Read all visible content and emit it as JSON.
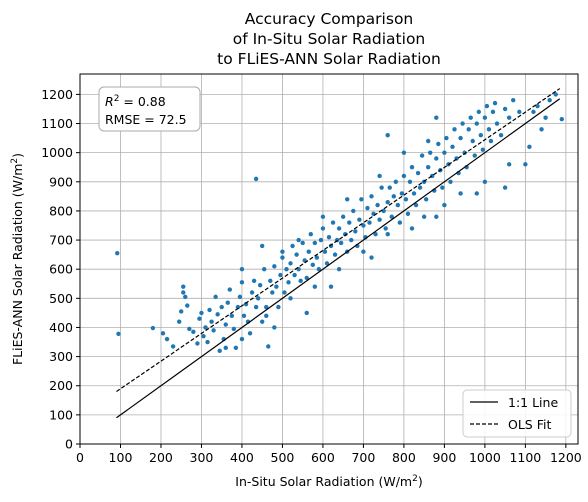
{
  "chart_data": {
    "type": "scatter",
    "title": [
      "Accuracy Comparison",
      "of In-Situ Solar Radiation",
      "to FLiES-ANN Solar Radiation"
    ],
    "xlabel": "In-Situ Solar Radiation (W/m",
    "xlabel_sup": "2",
    "xlabel_end": ")",
    "ylabel": "FLiES-ANN Solar Radiation (W/m",
    "ylabel_sup": "2",
    "ylabel_end": ")",
    "xlim": [
      0,
      1230
    ],
    "ylim": [
      0,
      1270
    ],
    "xticks": [
      0,
      100,
      200,
      300,
      400,
      500,
      600,
      700,
      800,
      900,
      1000,
      1100,
      1200
    ],
    "yticks": [
      0,
      100,
      200,
      300,
      400,
      500,
      600,
      700,
      800,
      900,
      1000,
      1100,
      1200
    ],
    "grid": true,
    "point_color": "#1f77b4",
    "stats": {
      "r2_label": "R",
      "r2_sup": "2",
      "r2_value": " = 0.88",
      "rmse": "RMSE = 72.5"
    },
    "lines": [
      {
        "name": "1:1 Line",
        "style": "solid",
        "points": [
          [
            90,
            90
          ],
          [
            1185,
            1185
          ]
        ]
      },
      {
        "name": "OLS Fit",
        "style": "dashed",
        "points": [
          [
            90,
            180
          ],
          [
            1185,
            1220
          ]
        ]
      }
    ],
    "legend_position": "lower-right",
    "points": [
      [
        92,
        655
      ],
      [
        95,
        378
      ],
      [
        180,
        398
      ],
      [
        205,
        380
      ],
      [
        215,
        360
      ],
      [
        230,
        335
      ],
      [
        245,
        420
      ],
      [
        250,
        455
      ],
      [
        255,
        520
      ],
      [
        255,
        540
      ],
      [
        260,
        505
      ],
      [
        265,
        475
      ],
      [
        270,
        395
      ],
      [
        280,
        385
      ],
      [
        290,
        345
      ],
      [
        295,
        430
      ],
      [
        300,
        450
      ],
      [
        305,
        370
      ],
      [
        310,
        400
      ],
      [
        315,
        350
      ],
      [
        320,
        460
      ],
      [
        325,
        420
      ],
      [
        330,
        390
      ],
      [
        335,
        505
      ],
      [
        340,
        445
      ],
      [
        345,
        320
      ],
      [
        350,
        470
      ],
      [
        355,
        360
      ],
      [
        360,
        410
      ],
      [
        365,
        485
      ],
      [
        370,
        530
      ],
      [
        375,
        440
      ],
      [
        380,
        395
      ],
      [
        385,
        330
      ],
      [
        390,
        470
      ],
      [
        395,
        505
      ],
      [
        400,
        555
      ],
      [
        405,
        440
      ],
      [
        410,
        480
      ],
      [
        415,
        420
      ],
      [
        420,
        380
      ],
      [
        425,
        520
      ],
      [
        430,
        560
      ],
      [
        435,
        910
      ],
      [
        435,
        470
      ],
      [
        440,
        500
      ],
      [
        445,
        545
      ],
      [
        450,
        420
      ],
      [
        455,
        600
      ],
      [
        460,
        470
      ],
      [
        465,
        335
      ],
      [
        470,
        560
      ],
      [
        475,
        520
      ],
      [
        480,
        610
      ],
      [
        485,
        540
      ],
      [
        490,
        470
      ],
      [
        495,
        580
      ],
      [
        500,
        640
      ],
      [
        505,
        520
      ],
      [
        510,
        600
      ],
      [
        515,
        555
      ],
      [
        520,
        620
      ],
      [
        525,
        680
      ],
      [
        530,
        580
      ],
      [
        535,
        650
      ],
      [
        540,
        600
      ],
      [
        545,
        560
      ],
      [
        550,
        690
      ],
      [
        555,
        630
      ],
      [
        560,
        570
      ],
      [
        565,
        660
      ],
      [
        570,
        720
      ],
      [
        575,
        615
      ],
      [
        580,
        690
      ],
      [
        585,
        640
      ],
      [
        590,
        600
      ],
      [
        595,
        700
      ],
      [
        600,
        740
      ],
      [
        605,
        660
      ],
      [
        610,
        620
      ],
      [
        615,
        710
      ],
      [
        620,
        680
      ],
      [
        625,
        760
      ],
      [
        630,
        650
      ],
      [
        635,
        700
      ],
      [
        640,
        740
      ],
      [
        645,
        690
      ],
      [
        650,
        780
      ],
      [
        655,
        720
      ],
      [
        660,
        660
      ],
      [
        665,
        760
      ],
      [
        670,
        700
      ],
      [
        675,
        800
      ],
      [
        680,
        730
      ],
      [
        685,
        680
      ],
      [
        690,
        770
      ],
      [
        695,
        840
      ],
      [
        700,
        750
      ],
      [
        705,
        710
      ],
      [
        710,
        810
      ],
      [
        715,
        760
      ],
      [
        720,
        850
      ],
      [
        725,
        790
      ],
      [
        730,
        720
      ],
      [
        735,
        820
      ],
      [
        740,
        770
      ],
      [
        745,
        880
      ],
      [
        750,
        800
      ],
      [
        755,
        740
      ],
      [
        760,
        830
      ],
      [
        765,
        880
      ],
      [
        770,
        780
      ],
      [
        775,
        850
      ],
      [
        780,
        900
      ],
      [
        785,
        820
      ],
      [
        790,
        760
      ],
      [
        795,
        860
      ],
      [
        800,
        920
      ],
      [
        805,
        840
      ],
      [
        810,
        790
      ],
      [
        815,
        900
      ],
      [
        820,
        950
      ],
      [
        825,
        860
      ],
      [
        830,
        820
      ],
      [
        835,
        930
      ],
      [
        840,
        880
      ],
      [
        845,
        990
      ],
      [
        850,
        900
      ],
      [
        855,
        840
      ],
      [
        860,
        950
      ],
      [
        865,
        1000
      ],
      [
        870,
        920
      ],
      [
        875,
        870
      ],
      [
        880,
        980
      ],
      [
        885,
        1030
      ],
      [
        890,
        940
      ],
      [
        895,
        880
      ],
      [
        900,
        1000
      ],
      [
        905,
        1050
      ],
      [
        910,
        960
      ],
      [
        915,
        900
      ],
      [
        920,
        1020
      ],
      [
        925,
        1080
      ],
      [
        930,
        980
      ],
      [
        935,
        930
      ],
      [
        940,
        1050
      ],
      [
        945,
        1100
      ],
      [
        950,
        1000
      ],
      [
        955,
        950
      ],
      [
        960,
        1080
      ],
      [
        965,
        1120
      ],
      [
        970,
        1040
      ],
      [
        975,
        990
      ],
      [
        980,
        1100
      ],
      [
        985,
        1140
      ],
      [
        990,
        1060
      ],
      [
        995,
        1010
      ],
      [
        1000,
        1120
      ],
      [
        1005,
        1160
      ],
      [
        1010,
        1080
      ],
      [
        1015,
        1040
      ],
      [
        1020,
        1140
      ],
      [
        1025,
        1170
      ],
      [
        1030,
        1100
      ],
      [
        1040,
        1060
      ],
      [
        1050,
        1150
      ],
      [
        1060,
        1120
      ],
      [
        1070,
        1180
      ],
      [
        1085,
        1140
      ],
      [
        1100,
        960
      ],
      [
        1110,
        1020
      ],
      [
        1120,
        1140
      ],
      [
        1130,
        1160
      ],
      [
        1140,
        1080
      ],
      [
        1150,
        1120
      ],
      [
        1160,
        1180
      ],
      [
        1175,
        1200
      ],
      [
        1190,
        1115
      ],
      [
        1050,
        880
      ],
      [
        980,
        860
      ],
      [
        900,
        820
      ],
      [
        850,
        780
      ],
      [
        760,
        720
      ],
      [
        700,
        660
      ],
      [
        640,
        600
      ],
      [
        580,
        540
      ],
      [
        520,
        500
      ],
      [
        460,
        440
      ],
      [
        400,
        360
      ],
      [
        360,
        330
      ],
      [
        560,
        450
      ],
      [
        620,
        540
      ],
      [
        480,
        400
      ],
      [
        720,
        640
      ],
      [
        820,
        740
      ],
      [
        880,
        780
      ],
      [
        940,
        860
      ],
      [
        1000,
        900
      ],
      [
        1060,
        960
      ],
      [
        540,
        700
      ],
      [
        600,
        780
      ],
      [
        660,
        840
      ],
      [
        740,
        920
      ],
      [
        800,
        1000
      ],
      [
        860,
        1040
      ],
      [
        760,
        1060
      ],
      [
        880,
        1120
      ],
      [
        400,
        600
      ],
      [
        450,
        680
      ],
      [
        500,
        660
      ]
    ]
  }
}
